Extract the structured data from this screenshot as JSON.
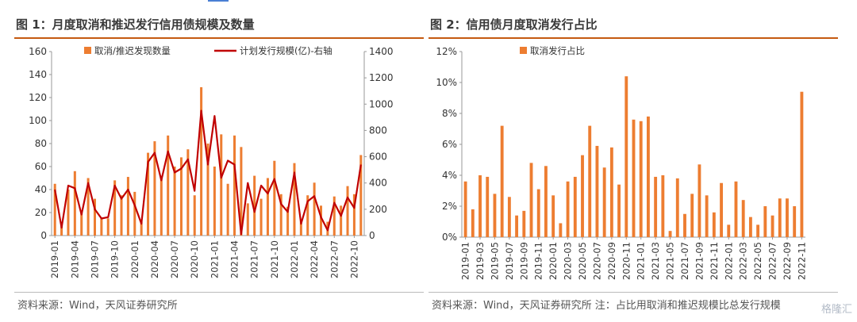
{
  "colors": {
    "bar": "#ed7d31",
    "line": "#c00000",
    "title_rule": "#c55a11",
    "axis": "#999999",
    "text": "#333333"
  },
  "left": {
    "title": "图 1：月度取消和推迟发行信用债规模及数量",
    "source": "资料来源：Wind，天风证券研究所",
    "legend": {
      "bar": "取消/推迟发现数量",
      "line": "计划发行规模(亿)-右轴"
    }
  },
  "right": {
    "title": "图 2：信用债月度取消发行占比",
    "source": "资料来源：Wind，天风证券研究所 注：占比用取消和推迟规模比总发行规模",
    "legend": {
      "bar": "取消发行占比"
    }
  },
  "watermark": "格隆汇",
  "chart_data": [
    {
      "type": "bar",
      "categories": [
        "2019-01",
        "2019-02",
        "2019-03",
        "2019-04",
        "2019-05",
        "2019-06",
        "2019-07",
        "2019-08",
        "2019-09",
        "2019-10",
        "2019-11",
        "2019-12",
        "2020-01",
        "2020-02",
        "2020-03",
        "2020-04",
        "2020-05",
        "2020-06",
        "2020-07",
        "2020-08",
        "2020-09",
        "2020-10",
        "2020-11",
        "2020-12",
        "2021-01",
        "2021-02",
        "2021-03",
        "2021-04",
        "2021-05",
        "2021-06",
        "2021-07",
        "2021-08",
        "2021-09",
        "2021-10",
        "2021-11",
        "2021-12",
        "2022-01",
        "2022-02",
        "2022-03",
        "2022-04",
        "2022-05",
        "2022-06",
        "2022-07",
        "2022-08",
        "2022-09",
        "2022-10",
        "2022-11"
      ],
      "tick_labels": [
        "2019-01",
        "2019-04",
        "2019-07",
        "2019-10",
        "2020-01",
        "2020-04",
        "2020-07",
        "2020-10",
        "2021-01",
        "2021-04",
        "2021-07",
        "2021-10",
        "2022-01",
        "2022-04",
        "2022-07",
        "2022-10"
      ],
      "series": [
        {
          "name": "取消/推迟发现数量",
          "type": "bar",
          "axis": "left",
          "values": [
            45,
            10,
            40,
            56,
            20,
            50,
            32,
            15,
            15,
            48,
            35,
            51,
            38,
            12,
            72,
            82,
            52,
            87,
            60,
            68,
            75,
            35,
            129,
            80,
            60,
            88,
            45,
            87,
            77,
            28,
            52,
            32,
            50,
            65,
            36,
            25,
            63,
            13,
            35,
            46,
            26,
            12,
            34,
            26,
            43,
            36,
            70
          ]
        },
        {
          "name": "计划发行规模(亿)-右轴",
          "type": "line",
          "axis": "right",
          "values": [
            350,
            60,
            380,
            360,
            160,
            400,
            200,
            130,
            140,
            380,
            280,
            350,
            230,
            90,
            560,
            630,
            420,
            640,
            480,
            510,
            580,
            340,
            950,
            540,
            910,
            440,
            570,
            540,
            10,
            400,
            180,
            380,
            320,
            430,
            240,
            180,
            480,
            90,
            260,
            300,
            140,
            40,
            250,
            150,
            290,
            210,
            540
          ]
        }
      ],
      "ylim_left": [
        0,
        160
      ],
      "yticks_left": [
        0,
        20,
        40,
        60,
        80,
        100,
        120,
        140,
        160
      ],
      "ylim_right": [
        0,
        1400
      ],
      "yticks_right": [
        0,
        200,
        400,
        600,
        800,
        1000,
        1200,
        1400
      ],
      "legend_position": "top"
    },
    {
      "type": "bar",
      "categories": [
        "2019-01",
        "2019-02",
        "2019-03",
        "2019-04",
        "2019-05",
        "2019-06",
        "2019-07",
        "2019-08",
        "2019-09",
        "2019-10",
        "2019-11",
        "2019-12",
        "2020-01",
        "2020-02",
        "2020-03",
        "2020-04",
        "2020-05",
        "2020-06",
        "2020-07",
        "2020-08",
        "2020-09",
        "2020-10",
        "2020-11",
        "2020-12",
        "2021-01",
        "2021-02",
        "2021-03",
        "2021-04",
        "2021-05",
        "2021-06",
        "2021-07",
        "2021-08",
        "2021-09",
        "2021-10",
        "2021-11",
        "2021-12",
        "2022-01",
        "2022-02",
        "2022-03",
        "2022-04",
        "2022-05",
        "2022-06",
        "2022-07",
        "2022-08",
        "2022-09",
        "2022-10",
        "2022-11"
      ],
      "tick_labels": [
        "2019-01",
        "2019-03",
        "2019-05",
        "2019-07",
        "2019-09",
        "2019-11",
        "2020-01",
        "2020-03",
        "2020-05",
        "2020-07",
        "2020-09",
        "2020-11",
        "2021-01",
        "2021-03",
        "2021-05",
        "2021-07",
        "2021-09",
        "2021-11",
        "2022-01",
        "2022-03",
        "2022-05",
        "2022-07",
        "2022-09",
        "2022-11"
      ],
      "series": [
        {
          "name": "取消发行占比",
          "values": [
            3.6,
            1.8,
            4.0,
            3.9,
            2.8,
            7.2,
            2.6,
            1.4,
            1.7,
            4.8,
            3.1,
            4.6,
            2.7,
            0.9,
            3.6,
            3.9,
            5.3,
            7.2,
            5.9,
            4.5,
            5.8,
            3.4,
            10.4,
            7.6,
            7.5,
            7.8,
            3.9,
            4.0,
            0.4,
            3.8,
            1.5,
            2.8,
            4.7,
            2.7,
            1.6,
            3.5,
            0.8,
            3.6,
            2.4,
            1.3,
            0.8,
            2.0,
            1.4,
            2.5,
            2.5,
            2.0,
            9.4
          ]
        }
      ],
      "ylim": [
        0,
        12
      ],
      "yticks": [
        "0%",
        "2%",
        "4%",
        "6%",
        "8%",
        "10%",
        "12%"
      ],
      "legend_position": "top-left"
    }
  ]
}
